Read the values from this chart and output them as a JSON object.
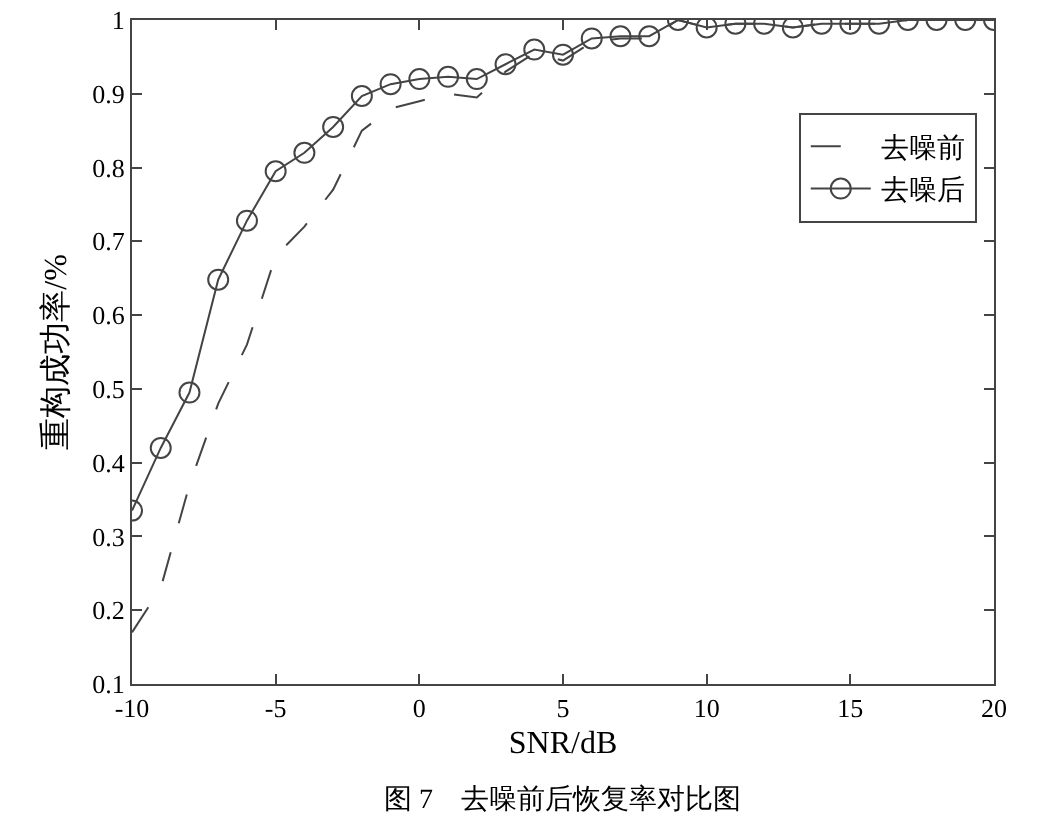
{
  "chart_data": {
    "type": "line",
    "xlabel": "SNR/dB",
    "ylabel": "重构成功率/%",
    "x": [
      -10,
      -9,
      -8,
      -7,
      -6,
      -5,
      -4,
      -3,
      -2,
      -1,
      0,
      1,
      2,
      3,
      4,
      5,
      6,
      7,
      8,
      9,
      10,
      11,
      12,
      13,
      14,
      15,
      16,
      17,
      18,
      19,
      20
    ],
    "series": [
      {
        "name": "去噪前",
        "color": "#444444",
        "line_style": "dashed",
        "marker": "none",
        "values": [
          0.17,
          0.23,
          0.37,
          0.48,
          0.56,
          0.68,
          0.72,
          0.77,
          0.85,
          0.88,
          0.89,
          0.9,
          0.895,
          0.93,
          0.955,
          0.945,
          0.97,
          0.975,
          0.975,
          1.0,
          0.99,
          0.995,
          0.995,
          0.99,
          0.995,
          0.995,
          0.995,
          1.0,
          1.0,
          1.0,
          1.0
        ]
      },
      {
        "name": "去噪后",
        "color": "#444444",
        "line_style": "solid",
        "marker": "circle",
        "values": [
          0.335,
          0.42,
          0.495,
          0.648,
          0.728,
          0.795,
          0.82,
          0.855,
          0.897,
          0.913,
          0.92,
          0.923,
          0.92,
          0.94,
          0.96,
          0.953,
          0.975,
          0.978,
          0.978,
          1.0,
          0.99,
          0.995,
          0.995,
          0.99,
          0.995,
          0.995,
          0.995,
          1.0,
          1.0,
          1.0,
          1.0
        ]
      }
    ],
    "xlim": [
      -10,
      20
    ],
    "xticks": [
      -10,
      -5,
      0,
      5,
      10,
      15,
      20
    ],
    "ylim": [
      0.1,
      1
    ],
    "yticks": [
      0.1,
      0.2,
      0.3,
      0.4,
      0.5,
      0.6,
      0.7,
      0.8,
      0.9,
      1
    ],
    "grid": false,
    "legend": "top right",
    "annotations": [
      "图 7　去噪前后恢复率对比图"
    ]
  }
}
